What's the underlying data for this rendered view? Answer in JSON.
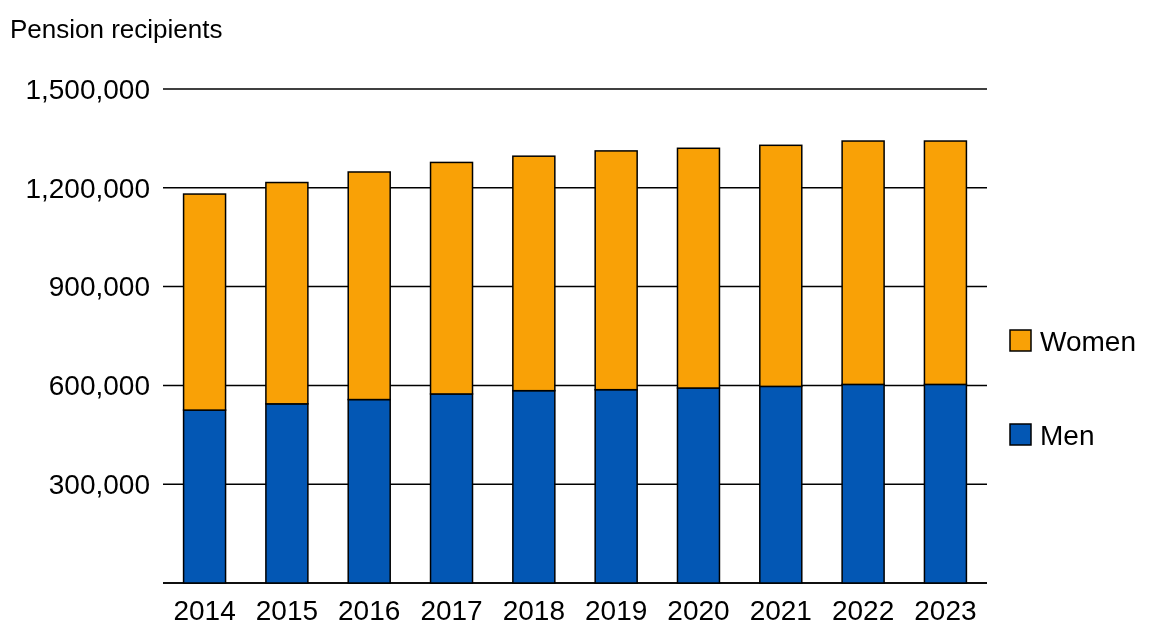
{
  "chart_data": {
    "type": "bar",
    "ylabel": "Pension recipients",
    "stacked": true,
    "categories": [
      "2014",
      "2015",
      "2016",
      "2017",
      "2018",
      "2019",
      "2020",
      "2021",
      "2022",
      "2023"
    ],
    "series": [
      {
        "name": "Men",
        "color": "#0357b4",
        "values": [
          525000,
          544000,
          557000,
          574000,
          584000,
          587000,
          592000,
          597000,
          603000,
          603000
        ]
      },
      {
        "name": "Women",
        "color": "#f9a106",
        "values": [
          656000,
          672000,
          691000,
          703000,
          712000,
          725000,
          728000,
          732000,
          739000,
          739000
        ]
      }
    ],
    "ylim": [
      0,
      1500000
    ],
    "yticks": [
      {
        "value": 0,
        "label": null
      },
      {
        "value": 300000,
        "label": "300,000"
      },
      {
        "value": 600000,
        "label": "600,000"
      },
      {
        "value": 900000,
        "label": "900,000"
      },
      {
        "value": 1200000,
        "label": "1,200,000"
      },
      {
        "value": 1500000,
        "label": "1,500,000"
      }
    ],
    "grid": "y",
    "legend": "right"
  }
}
